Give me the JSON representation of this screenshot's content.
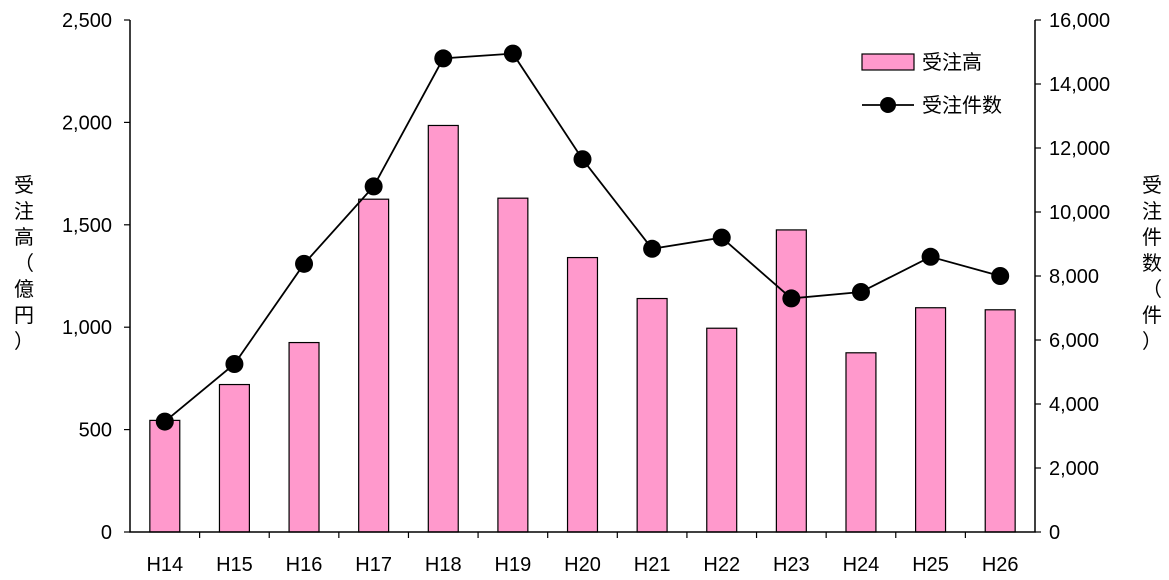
{
  "chart_data": {
    "type": "bar",
    "categories": [
      "H14",
      "H15",
      "H16",
      "H17",
      "H18",
      "H19",
      "H20",
      "H21",
      "H22",
      "H23",
      "H24",
      "H25",
      "H26"
    ],
    "series": [
      {
        "name": "受注高",
        "type": "bar",
        "axis": "left",
        "color": "#ff99cc",
        "values": [
          545,
          720,
          925,
          1625,
          1985,
          1630,
          1340,
          1140,
          995,
          1475,
          875,
          1095,
          1085
        ]
      },
      {
        "name": "受注件数",
        "type": "line",
        "axis": "right",
        "color": "#000000",
        "values": [
          3450,
          5250,
          8380,
          10800,
          14800,
          14950,
          11650,
          8850,
          9200,
          7300,
          7500,
          8600,
          8000
        ]
      }
    ],
    "left_axis": {
      "title_chars": [
        "受",
        "注",
        "高",
        "（",
        "億",
        "円",
        "）"
      ],
      "ylim": [
        0,
        2500
      ],
      "ticks": [
        0,
        500,
        1000,
        1500,
        2000,
        2500
      ],
      "tick_labels": [
        "0",
        "500",
        "1,000",
        "1,500",
        "2,000",
        "2,500"
      ]
    },
    "right_axis": {
      "title_chars": [
        "受",
        "注",
        "件",
        "数",
        "（",
        "件",
        "）"
      ],
      "ylim": [
        0,
        16000
      ],
      "ticks": [
        0,
        2000,
        4000,
        6000,
        8000,
        10000,
        12000,
        14000,
        16000
      ],
      "tick_labels": [
        "0",
        "2,000",
        "4,000",
        "6,000",
        "8,000",
        "10,000",
        "12,000",
        "14,000",
        "16,000"
      ]
    },
    "legend_position": "top-right",
    "grid": false
  }
}
